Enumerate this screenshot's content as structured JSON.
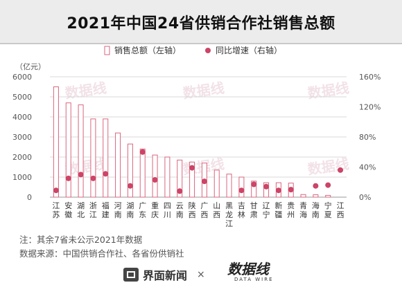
{
  "title": "2021年中国24省供销合作社销售总额",
  "legend": {
    "bar_label": "销售总额（左轴）",
    "dot_label": "同比增速（右轴）"
  },
  "left_unit": "（亿元）",
  "notes": {
    "note1": "注：其余7省未公示2021年数据",
    "note2": "数据来源：中国供销合作社、各省份供销社"
  },
  "footer": {
    "jiemian_label": "界面新闻",
    "times": "×",
    "datawire_cn": "数据线",
    "datawire_en": "DATA WIRE"
  },
  "colors": {
    "bar_stroke": "#d9667e",
    "dot_fill": "#cc4466",
    "grid": "#d8d8d8"
  },
  "chart_data": {
    "type": "bar",
    "categories": [
      "江苏",
      "安徽",
      "湖北",
      "浙江",
      "福建",
      "河南",
      "湖南",
      "广东",
      "重庆",
      "四川",
      "云南",
      "陕西",
      "广西",
      "山西",
      "黑龙江",
      "吉林",
      "甘肃",
      "辽宁",
      "新疆",
      "贵州",
      "青海",
      "海南",
      "宁夏",
      "江西"
    ],
    "left_axis": {
      "ticks": [
        0,
        1000,
        2000,
        3000,
        4000,
        5000,
        6000
      ],
      "ylim": [
        0,
        6000
      ]
    },
    "right_axis": {
      "ticks": [
        "0%",
        "40%",
        "80%",
        "120%",
        "160%"
      ],
      "ylim": [
        0,
        160
      ]
    },
    "series": [
      {
        "name": "销售总额（左轴）",
        "axis": "left",
        "values": [
          5500,
          4700,
          4600,
          3900,
          3900,
          3200,
          2650,
          2400,
          2100,
          2000,
          1850,
          1750,
          1700,
          1350,
          1150,
          1000,
          800,
          720,
          720,
          700,
          130,
          120,
          90,
          null
        ]
      },
      {
        "name": "同比增速（右轴）",
        "axis": "right",
        "values": [
          9,
          25,
          30,
          25,
          31,
          null,
          15,
          60,
          23,
          null,
          8,
          39,
          21,
          null,
          null,
          9,
          17,
          14,
          9,
          10,
          null,
          15,
          16,
          36
        ]
      }
    ]
  }
}
